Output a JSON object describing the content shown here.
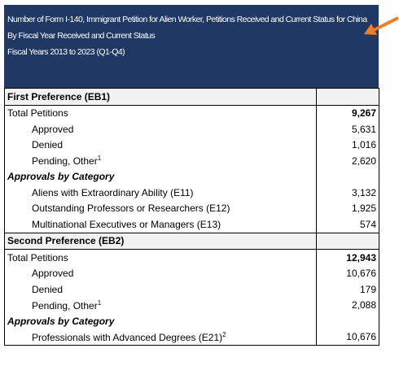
{
  "header": {
    "lines": [
      "Number of Form I-140, Immigrant Petition for Alien Worker, Petitions Received and Current Status for China",
      "By Fiscal Year Received and Current Status",
      "Fiscal Years 2013 to 2023 (Q1-Q4)"
    ]
  },
  "table": {
    "rows": [
      {
        "label": "First Preference (EB1)"
      },
      {
        "label": "Total Petitions",
        "value": "9,267"
      },
      {
        "label": "Approved",
        "value": "5,631"
      },
      {
        "label": "Denied",
        "value": "1,016"
      },
      {
        "label": "Pending, Other",
        "note": "1",
        "value": "2,620"
      },
      {
        "label": "Approvals by Category"
      },
      {
        "label": "Aliens with Extraordinary Ability (E11)",
        "value": "3,132"
      },
      {
        "label": "Outstanding Professors or Researchers (E12)",
        "value": "1,925"
      },
      {
        "label": "Multinational Executives or Managers (E13)",
        "value": "574"
      },
      {
        "label": "Second Preference (EB2)"
      },
      {
        "label": "Total Petitions",
        "value": "12,943"
      },
      {
        "label": "Approved",
        "value": "10,676"
      },
      {
        "label": "Denied",
        "value": "179"
      },
      {
        "label": "Pending, Other",
        "note": "1",
        "value": "2,088"
      },
      {
        "label": "Approvals by Category"
      },
      {
        "label": "Professionals with Advanced Degrees (E21)",
        "note": "2",
        "value": "10,676"
      }
    ]
  }
}
